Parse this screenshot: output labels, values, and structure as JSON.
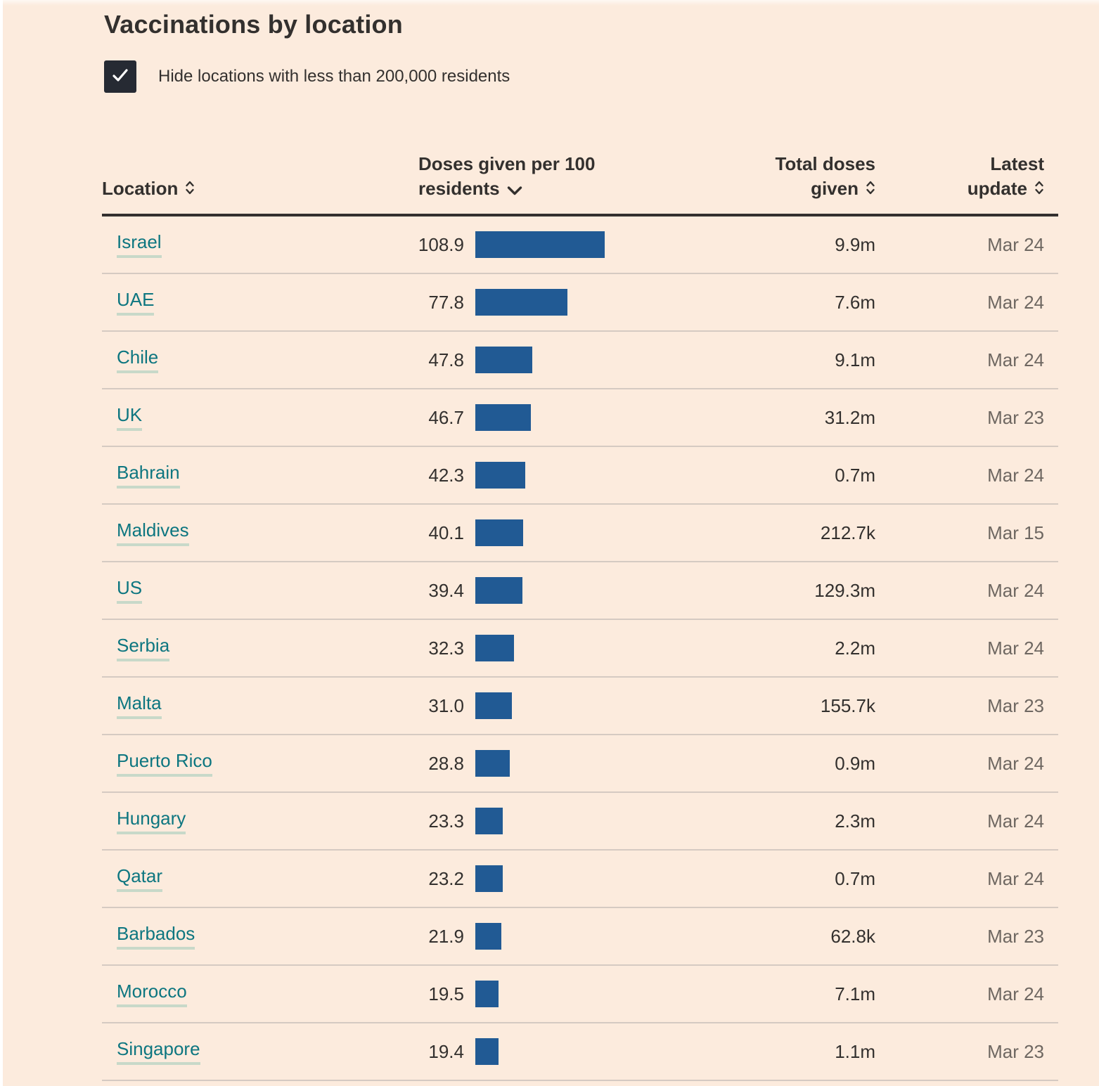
{
  "page": {
    "title": "Vaccinations by location"
  },
  "filter": {
    "label": "Hide locations with less than 200,000 residents",
    "checked": true,
    "checkbox_color": "#262a33",
    "check_icon": "check-icon"
  },
  "colors": {
    "background": "#fcebdd",
    "bar": "#215a94",
    "link": "#0d7680",
    "link_underline": "#c8d9c9",
    "text_dark": "#33302e",
    "text_muted": "#6e6761",
    "row_divider": "#d5cac2"
  },
  "table": {
    "headers": {
      "location": {
        "label": "Location",
        "sort_state": "sortable",
        "sort_icon": "sort-both-icon"
      },
      "doses": {
        "label": "Doses given per 100 residents",
        "sort_state": "sorted-desc",
        "sort_icon": "chevron-down-icon"
      },
      "total": {
        "label": "Total doses given",
        "sort_state": "sortable",
        "sort_icon": "sort-both-icon"
      },
      "update": {
        "label": "Latest update",
        "sort_state": "sortable",
        "sort_icon": "sort-both-icon"
      }
    },
    "rows": [
      {
        "location": "Israel",
        "doses_per_100": "108.9",
        "total_doses": "9.9m",
        "latest_update": "Mar 24"
      },
      {
        "location": "UAE",
        "doses_per_100": "77.8",
        "total_doses": "7.6m",
        "latest_update": "Mar 24"
      },
      {
        "location": "Chile",
        "doses_per_100": "47.8",
        "total_doses": "9.1m",
        "latest_update": "Mar 24"
      },
      {
        "location": "UK",
        "doses_per_100": "46.7",
        "total_doses": "31.2m",
        "latest_update": "Mar 23"
      },
      {
        "location": "Bahrain",
        "doses_per_100": "42.3",
        "total_doses": "0.7m",
        "latest_update": "Mar 24"
      },
      {
        "location": "Maldives",
        "doses_per_100": "40.1",
        "total_doses": "212.7k",
        "latest_update": "Mar 15"
      },
      {
        "location": "US",
        "doses_per_100": "39.4",
        "total_doses": "129.3m",
        "latest_update": "Mar 24"
      },
      {
        "location": "Serbia",
        "doses_per_100": "32.3",
        "total_doses": "2.2m",
        "latest_update": "Mar 24"
      },
      {
        "location": "Malta",
        "doses_per_100": "31.0",
        "total_doses": "155.7k",
        "latest_update": "Mar 23"
      },
      {
        "location": "Puerto Rico",
        "doses_per_100": "28.8",
        "total_doses": "0.9m",
        "latest_update": "Mar 24"
      },
      {
        "location": "Hungary",
        "doses_per_100": "23.3",
        "total_doses": "2.3m",
        "latest_update": "Mar 24"
      },
      {
        "location": "Qatar",
        "doses_per_100": "23.2",
        "total_doses": "0.7m",
        "latest_update": "Mar 24"
      },
      {
        "location": "Barbados",
        "doses_per_100": "21.9",
        "total_doses": "62.8k",
        "latest_update": "Mar 23"
      },
      {
        "location": "Morocco",
        "doses_per_100": "19.5",
        "total_doses": "7.1m",
        "latest_update": "Mar 24"
      },
      {
        "location": "Singapore",
        "doses_per_100": "19.4",
        "total_doses": "1.1m",
        "latest_update": "Mar 23"
      }
    ]
  },
  "chart_data": {
    "type": "table",
    "title": "Vaccinations by location",
    "subtitle_control": "Hide locations with less than 200,000 residents (checked)",
    "columns": [
      "Location",
      "Doses given per 100 residents",
      "Total doses given",
      "Latest update"
    ],
    "sort": {
      "column": "Doses given per 100 residents",
      "direction": "desc"
    },
    "bar_column": "Doses given per 100 residents",
    "bar_axis_max": 108.9,
    "bar_color": "#215a94",
    "rows": [
      [
        "Israel",
        108.9,
        "9.9m",
        "Mar 24"
      ],
      [
        "UAE",
        77.8,
        "7.6m",
        "Mar 24"
      ],
      [
        "Chile",
        47.8,
        "9.1m",
        "Mar 24"
      ],
      [
        "UK",
        46.7,
        "31.2m",
        "Mar 23"
      ],
      [
        "Bahrain",
        42.3,
        "0.7m",
        "Mar 24"
      ],
      [
        "Maldives",
        40.1,
        "212.7k",
        "Mar 15"
      ],
      [
        "US",
        39.4,
        "129.3m",
        "Mar 24"
      ],
      [
        "Serbia",
        32.3,
        "2.2m",
        "Mar 24"
      ],
      [
        "Malta",
        31.0,
        "155.7k",
        "Mar 23"
      ],
      [
        "Puerto Rico",
        28.8,
        "0.9m",
        "Mar 24"
      ],
      [
        "Hungary",
        23.3,
        "2.3m",
        "Mar 24"
      ],
      [
        "Qatar",
        23.2,
        "0.7m",
        "Mar 24"
      ],
      [
        "Barbados",
        21.9,
        "62.8k",
        "Mar 23"
      ],
      [
        "Morocco",
        19.5,
        "7.1m",
        "Mar 24"
      ],
      [
        "Singapore",
        19.4,
        "1.1m",
        "Mar 23"
      ]
    ]
  }
}
